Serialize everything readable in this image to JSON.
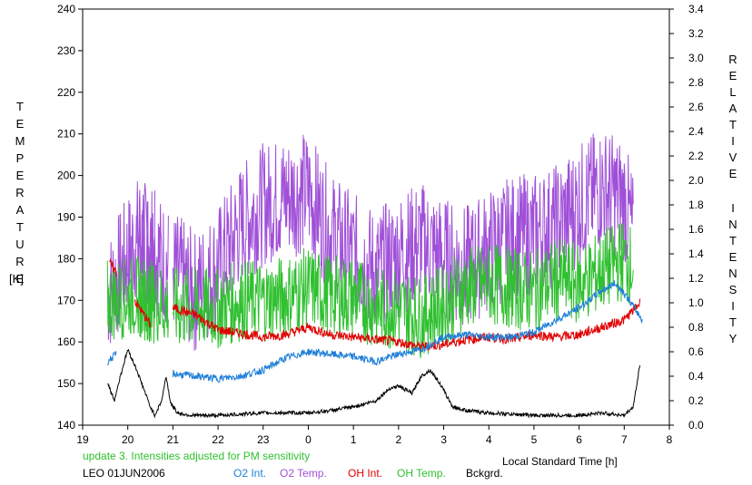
{
  "chart_data": {
    "type": "line",
    "xlabel": "Local Standard Time [h]",
    "ylabel_left": "TEMPERATURE",
    "ylabel_left_unit": "[K]",
    "ylabel_right": "RELATIVE INTENSITY",
    "x_ticks": [
      19,
      20,
      21,
      22,
      23,
      0,
      1,
      2,
      3,
      4,
      5,
      6,
      7,
      8
    ],
    "xlim": [
      19,
      32
    ],
    "ylim_left": [
      140,
      240
    ],
    "ylim_right": [
      0.0,
      3.4
    ],
    "left_ticks": [
      "140",
      "150",
      "160",
      "170",
      "180",
      "190",
      "200",
      "210",
      "220",
      "230",
      "240"
    ],
    "right_ticks": [
      "0.0",
      "0.2",
      "0.4",
      "0.6",
      "0.8",
      "1.0",
      "1.2",
      "1.4",
      "1.6",
      "1.8",
      "2.0",
      "2.2",
      "2.4",
      "2.6",
      "2.8",
      "3.0",
      "3.2",
      "3.4"
    ],
    "grid": false,
    "annotation": "update 3. Intensities adjusted for PM sensitivity",
    "station": "LEO 01JUN2006",
    "legend": [
      {
        "name": "O2 Int.",
        "color": "#1E7FD8"
      },
      {
        "name": "O2 Temp.",
        "color": "#A050D8"
      },
      {
        "name": "OH Int.",
        "color": "#E00000"
      },
      {
        "name": "OH Temp.",
        "color": "#30C030"
      },
      {
        "name": "Bckgrd.",
        "color": "#000000"
      }
    ],
    "series": [
      {
        "name": "O2 Temp.",
        "axis": "left",
        "color": "#A050D8",
        "segments": [
          [
            19.55,
            20.6
          ],
          [
            20.2,
            20.9
          ],
          [
            21.0,
            31.2
          ]
        ],
        "base": [
          [
            19.6,
            172
          ],
          [
            20.2,
            185
          ],
          [
            20.4,
            184
          ],
          [
            21.0,
            177
          ],
          [
            21.5,
            172
          ],
          [
            22.0,
            178
          ],
          [
            22.5,
            188
          ],
          [
            23.0,
            193
          ],
          [
            23.5,
            195
          ],
          [
            24.0,
            196
          ],
          [
            24.5,
            186
          ],
          [
            25.0,
            181
          ],
          [
            25.5,
            177
          ],
          [
            26.0,
            181
          ],
          [
            26.5,
            184
          ],
          [
            27.0,
            180
          ],
          [
            27.5,
            178
          ],
          [
            28.0,
            182
          ],
          [
            28.5,
            185
          ],
          [
            29.0,
            186
          ],
          [
            29.5,
            188
          ],
          [
            30.0,
            193
          ],
          [
            30.5,
            197
          ],
          [
            31.0,
            194
          ],
          [
            31.2,
            186
          ]
        ],
        "amp": 15
      },
      {
        "name": "OH Temp.",
        "axis": "left",
        "color": "#30C030",
        "segments": [
          [
            19.55,
            20.6
          ],
          [
            20.2,
            20.9
          ],
          [
            21.0,
            31.2
          ]
        ],
        "base": [
          [
            19.6,
            170
          ],
          [
            20.2,
            171
          ],
          [
            21.0,
            168
          ],
          [
            22.0,
            168
          ],
          [
            22.5,
            170
          ],
          [
            23.0,
            170
          ],
          [
            23.5,
            171
          ],
          [
            24.0,
            173
          ],
          [
            24.5,
            171
          ],
          [
            25.0,
            171
          ],
          [
            25.5,
            168
          ],
          [
            26.0,
            168
          ],
          [
            26.5,
            166
          ],
          [
            27.0,
            169
          ],
          [
            27.5,
            173
          ],
          [
            28.0,
            174
          ],
          [
            28.5,
            173
          ],
          [
            29.0,
            172
          ],
          [
            29.5,
            175
          ],
          [
            30.0,
            174
          ],
          [
            30.5,
            177
          ],
          [
            31.0,
            180
          ],
          [
            31.2,
            178
          ]
        ],
        "amp": 10
      },
      {
        "name": "OH Int.",
        "axis": "right",
        "color": "#E00000",
        "segments": [
          [
            19.6,
            19.75
          ],
          [
            20.15,
            20.5
          ],
          [
            21.0,
            31.35
          ]
        ],
        "base": [
          [
            19.6,
            1.32
          ],
          [
            19.75,
            1.25
          ],
          [
            20.15,
            1.02
          ],
          [
            20.5,
            0.82
          ],
          [
            21.0,
            0.96
          ],
          [
            21.5,
            0.9
          ],
          [
            22.0,
            0.78
          ],
          [
            23.0,
            0.72
          ],
          [
            23.5,
            0.74
          ],
          [
            24.0,
            0.8
          ],
          [
            24.5,
            0.74
          ],
          [
            25.0,
            0.72
          ],
          [
            25.5,
            0.7
          ],
          [
            26.0,
            0.68
          ],
          [
            26.5,
            0.64
          ],
          [
            27.0,
            0.66
          ],
          [
            27.5,
            0.7
          ],
          [
            28.0,
            0.72
          ],
          [
            28.5,
            0.7
          ],
          [
            29.0,
            0.74
          ],
          [
            29.5,
            0.72
          ],
          [
            30.0,
            0.74
          ],
          [
            30.5,
            0.8
          ],
          [
            31.0,
            0.86
          ],
          [
            31.35,
            1.0
          ]
        ],
        "amp": 0.04
      },
      {
        "name": "O2 Int.",
        "axis": "right",
        "color": "#1E7FD8",
        "segments": [
          [
            19.55,
            19.75
          ],
          [
            21.0,
            31.4
          ]
        ],
        "base": [
          [
            19.55,
            0.52
          ],
          [
            19.75,
            0.58
          ],
          [
            21.0,
            0.42
          ],
          [
            22.0,
            0.38
          ],
          [
            22.5,
            0.4
          ],
          [
            23.0,
            0.45
          ],
          [
            23.5,
            0.55
          ],
          [
            24.0,
            0.6
          ],
          [
            24.5,
            0.58
          ],
          [
            25.0,
            0.56
          ],
          [
            25.5,
            0.52
          ],
          [
            26.0,
            0.58
          ],
          [
            26.5,
            0.62
          ],
          [
            27.0,
            0.72
          ],
          [
            27.5,
            0.74
          ],
          [
            28.0,
            0.72
          ],
          [
            28.5,
            0.72
          ],
          [
            29.0,
            0.76
          ],
          [
            29.5,
            0.86
          ],
          [
            30.0,
            0.96
          ],
          [
            30.5,
            1.1
          ],
          [
            30.8,
            1.16
          ],
          [
            31.0,
            1.08
          ],
          [
            31.4,
            0.86
          ]
        ],
        "amp": 0.03
      },
      {
        "name": "Bckgrd.",
        "axis": "right",
        "color": "#000000",
        "segments": [
          [
            19.55,
            31.35
          ]
        ],
        "base": [
          [
            19.55,
            0.35
          ],
          [
            19.7,
            0.2
          ],
          [
            19.85,
            0.42
          ],
          [
            20.0,
            0.62
          ],
          [
            20.2,
            0.45
          ],
          [
            20.35,
            0.3
          ],
          [
            20.5,
            0.15
          ],
          [
            20.6,
            0.08
          ],
          [
            20.75,
            0.2
          ],
          [
            20.85,
            0.4
          ],
          [
            20.95,
            0.18
          ],
          [
            21.1,
            0.1
          ],
          [
            21.4,
            0.08
          ],
          [
            22.0,
            0.08
          ],
          [
            23.0,
            0.1
          ],
          [
            24.0,
            0.1
          ],
          [
            24.5,
            0.12
          ],
          [
            25.0,
            0.15
          ],
          [
            25.5,
            0.2
          ],
          [
            25.8,
            0.3
          ],
          [
            26.0,
            0.32
          ],
          [
            26.3,
            0.26
          ],
          [
            26.5,
            0.4
          ],
          [
            26.7,
            0.45
          ],
          [
            26.9,
            0.35
          ],
          [
            27.2,
            0.15
          ],
          [
            27.5,
            0.12
          ],
          [
            28.0,
            0.1
          ],
          [
            29.0,
            0.08
          ],
          [
            30.0,
            0.08
          ],
          [
            30.5,
            0.1
          ],
          [
            31.0,
            0.08
          ],
          [
            31.2,
            0.15
          ],
          [
            31.35,
            0.5
          ]
        ],
        "amp": 0.015
      }
    ]
  }
}
